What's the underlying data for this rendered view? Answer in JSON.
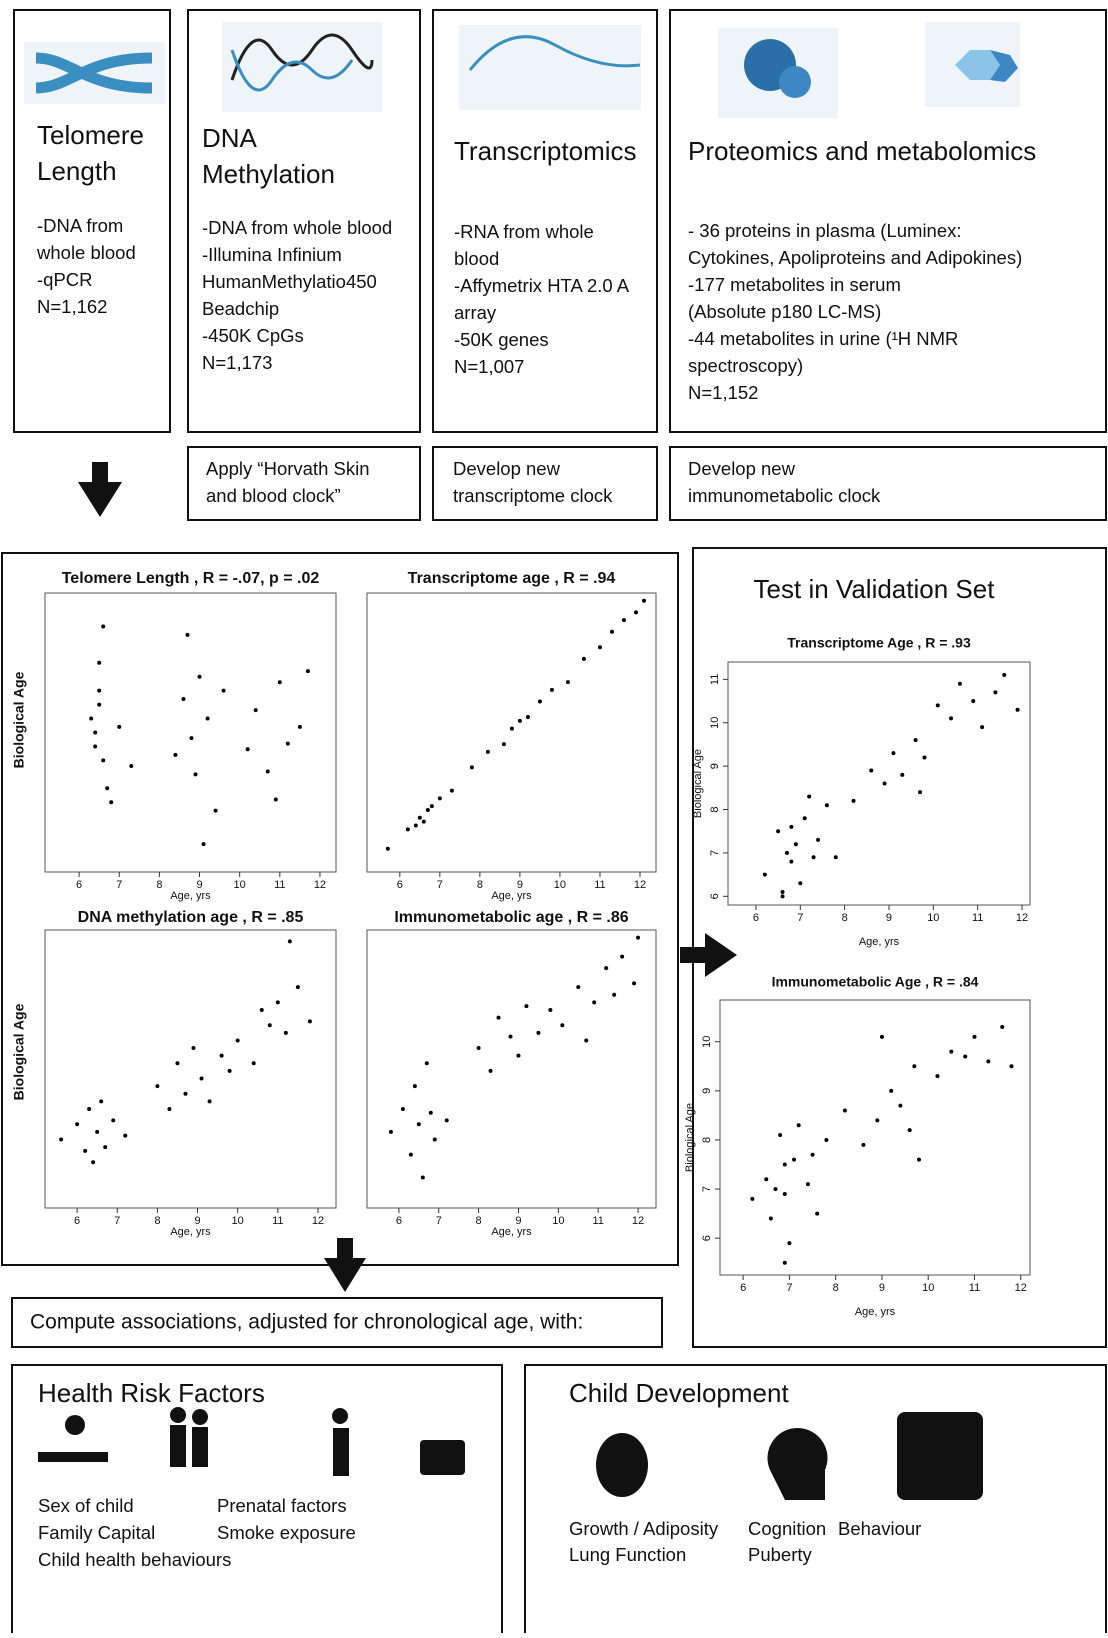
{
  "boxes": [
    {
      "title": [
        "Telomere",
        "Length"
      ],
      "lines": [
        "-DNA from",
        "whole blood",
        "-qPCR",
        "N=1,162"
      ]
    },
    {
      "title": [
        "DNA",
        "Methylation"
      ],
      "lines": [
        "-DNA from whole blood",
        "-Illumina Infinium",
        "HumanMethylatio450",
        "Beadchip",
        "-450K CpGs",
        "N=1,173"
      ]
    },
    {
      "title": [
        "Transcriptomics"
      ],
      "lines": [
        "-RNA from whole",
        "blood",
        "-Affymetrix HTA 2.0 A",
        "array",
        "-50K genes",
        "N=1,007"
      ]
    },
    {
      "title": [
        "Proteomics and metabolomics"
      ],
      "lines": [
        "- 36 proteins in plasma (Luminex:",
        "Cytokines, Apoliproteins and Adipokines)",
        "-177 metabolites in serum",
        " (Absolute p180 LC-MS)",
        "-44 metabolites in urine (¹H NMR",
        "spectroscopy)",
        "N=1,152"
      ]
    }
  ],
  "clocks": [
    [
      "Apply “Horvath Skin",
      "and blood clock”"
    ],
    [
      "Develop new",
      "transcriptome clock"
    ],
    [
      "Develop new",
      "immunometabolic clock"
    ]
  ],
  "row_labels": [
    "Biological Age",
    "Biological Age"
  ],
  "validation_title": "Test in Validation Set",
  "plots": [
    {
      "title": "Telomere Length , R = -.07, p = .02",
      "xlabel": "Age, yrs",
      "xlim": [
        5.15,
        12.4
      ],
      "ylim": [
        0,
        10
      ],
      "xticks": [
        6,
        7,
        8,
        9,
        10,
        11,
        12
      ],
      "x": [
        6.4,
        6.5,
        6.6,
        6.5,
        6.7,
        6.3,
        6.6,
        6.8,
        6.5,
        6.4,
        7.0,
        7.3,
        8.6,
        8.8,
        9.0,
        8.9,
        9.2,
        8.7,
        9.4,
        9.6,
        8.4,
        9.1,
        10.4,
        10.7,
        11.0,
        11.2,
        10.9,
        11.5,
        11.7,
        10.2
      ],
      "y": [
        5,
        6.5,
        4,
        7.5,
        3,
        5.5,
        8.8,
        2.5,
        6,
        4.5,
        5.2,
        3.8,
        6.2,
        4.8,
        7,
        3.5,
        5.5,
        8.5,
        2.2,
        6.5,
        4.2,
        1,
        5.8,
        3.6,
        6.8,
        4.6,
        2.6,
        5.2,
        7.2,
        4.4
      ]
    },
    {
      "title": "Transcriptome age , R = .94",
      "xlabel": "Age, yrs",
      "xlim": [
        5.18,
        12.4
      ],
      "ylim": [
        5.2,
        12.4
      ],
      "xticks": [
        6,
        7,
        8,
        9,
        10,
        11,
        12
      ],
      "x": [
        5.7,
        6.2,
        6.4,
        6.5,
        6.6,
        6.7,
        6.8,
        7.0,
        7.3,
        7.8,
        8.2,
        8.6,
        8.8,
        9.0,
        9.2,
        9.5,
        9.8,
        10.2,
        10.6,
        11.0,
        11.3,
        11.6,
        11.9,
        12.1
      ],
      "y": [
        5.8,
        6.3,
        6.4,
        6.6,
        6.5,
        6.8,
        6.9,
        7.1,
        7.3,
        7.9,
        8.3,
        8.5,
        8.9,
        9.1,
        9.2,
        9.6,
        9.9,
        10.1,
        10.7,
        11.0,
        11.4,
        11.7,
        11.9,
        12.2
      ]
    },
    {
      "title": "DNA methylation age , R = .85",
      "xlabel": "Age, yrs",
      "xlim": [
        5.2,
        12.45
      ],
      "ylim": [
        5,
        12.3
      ],
      "xticks": [
        6,
        7,
        8,
        9,
        10,
        11,
        12
      ],
      "x": [
        5.6,
        6.0,
        6.2,
        6.3,
        6.4,
        6.5,
        6.6,
        6.7,
        6.9,
        7.2,
        8.0,
        8.3,
        8.5,
        8.7,
        8.9,
        9.1,
        9.3,
        9.6,
        10.0,
        10.4,
        10.8,
        11.0,
        11.2,
        11.5,
        11.8,
        11.3,
        10.6,
        9.8
      ],
      "y": [
        6.8,
        7.2,
        6.5,
        7.6,
        6.2,
        7.0,
        7.8,
        6.6,
        7.3,
        6.9,
        8.2,
        7.6,
        8.8,
        8.0,
        9.2,
        8.4,
        7.8,
        9.0,
        9.4,
        8.8,
        9.8,
        10.4,
        9.6,
        10.8,
        9.9,
        12.0,
        10.2,
        8.6
      ]
    },
    {
      "title": "Immunometabolic age , R = .86",
      "xlabel": "Age, yrs",
      "xlim": [
        5.2,
        12.45
      ],
      "ylim": [
        5,
        12.3
      ],
      "xticks": [
        6,
        7,
        8,
        9,
        10,
        11,
        12
      ],
      "x": [
        5.8,
        6.1,
        6.3,
        6.4,
        6.5,
        6.6,
        6.7,
        6.8,
        6.9,
        7.2,
        8.0,
        8.3,
        8.5,
        8.8,
        9.0,
        9.2,
        9.5,
        9.8,
        10.1,
        10.5,
        10.9,
        11.2,
        11.4,
        11.6,
        11.9,
        12.0,
        10.7
      ],
      "y": [
        7.0,
        7.6,
        6.4,
        8.2,
        7.2,
        5.8,
        8.8,
        7.5,
        6.8,
        7.3,
        9.2,
        8.6,
        10.0,
        9.5,
        9.0,
        10.3,
        9.6,
        10.2,
        9.8,
        10.8,
        10.4,
        11.3,
        10.6,
        11.6,
        10.9,
        12.1,
        9.4
      ]
    },
    {
      "title": "Transcriptome Age , R = .93",
      "xlabel": "Age, yrs",
      "ylabel": "Biological Age",
      "xlim": [
        5.37,
        12.18
      ],
      "ylim": [
        5.8,
        11.4
      ],
      "xticks": [
        6,
        7,
        8,
        9,
        10,
        11,
        12
      ],
      "yticks": [
        6,
        7,
        8,
        9,
        10,
        11
      ],
      "x": [
        6.2,
        6.5,
        6.6,
        6.7,
        6.8,
        6.8,
        6.9,
        7.0,
        7.1,
        7.3,
        7.4,
        7.6,
        7.8,
        8.2,
        8.6,
        8.9,
        9.1,
        9.3,
        9.6,
        9.7,
        9.8,
        10.1,
        10.4,
        10.6,
        10.9,
        11.1,
        11.4,
        11.6,
        11.9,
        7.2,
        6.6
      ],
      "y": [
        6.5,
        7.5,
        6.1,
        7.0,
        6.8,
        7.6,
        7.2,
        6.3,
        7.8,
        6.9,
        7.3,
        8.1,
        6.9,
        8.2,
        8.9,
        8.6,
        9.3,
        8.8,
        9.6,
        8.4,
        9.2,
        10.4,
        10.1,
        10.9,
        10.5,
        9.9,
        10.7,
        11.1,
        10.3,
        8.3,
        6.0
      ]
    },
    {
      "title": "Immunometabolic Age , R = .84",
      "xlabel": "Age, yrs",
      "ylabel": "Biological Age",
      "xlim": [
        5.5,
        12.2
      ],
      "ylim": [
        5.25,
        10.85
      ],
      "xticks": [
        6,
        7,
        8,
        9,
        10,
        11,
        12
      ],
      "yticks": [
        6,
        7,
        8,
        9,
        10
      ],
      "x": [
        6.2,
        6.5,
        6.6,
        6.7,
        6.8,
        6.9,
        6.9,
        7.0,
        7.1,
        7.2,
        7.4,
        7.5,
        7.6,
        7.8,
        8.2,
        8.6,
        8.9,
        9.0,
        9.2,
        9.4,
        9.6,
        9.7,
        9.8,
        10.2,
        10.5,
        10.8,
        11.0,
        11.3,
        11.6,
        11.8,
        6.9
      ],
      "y": [
        6.8,
        7.2,
        6.4,
        7.0,
        8.1,
        7.5,
        6.9,
        5.9,
        7.6,
        8.3,
        7.1,
        7.7,
        6.5,
        8.0,
        8.6,
        7.9,
        8.4,
        10.1,
        9.0,
        8.7,
        8.2,
        9.5,
        7.6,
        9.3,
        9.8,
        9.7,
        10.1,
        9.6,
        10.3,
        9.5,
        5.5
      ]
    }
  ],
  "compute": "Compute associations, adjusted for chronological age, with:",
  "health": {
    "title": "Health Risk Factors",
    "items": [
      [
        "Sex of child",
        "Prenatal factors"
      ],
      [
        "Family Capital",
        "Smoke exposure"
      ],
      [
        "Child health behaviours"
      ]
    ]
  },
  "development": {
    "title": "Child Development",
    "items": [
      [
        "Growth / Adiposity",
        "Cognition",
        "Behaviour"
      ],
      [
        "Lung Function",
        "Puberty"
      ]
    ]
  }
}
